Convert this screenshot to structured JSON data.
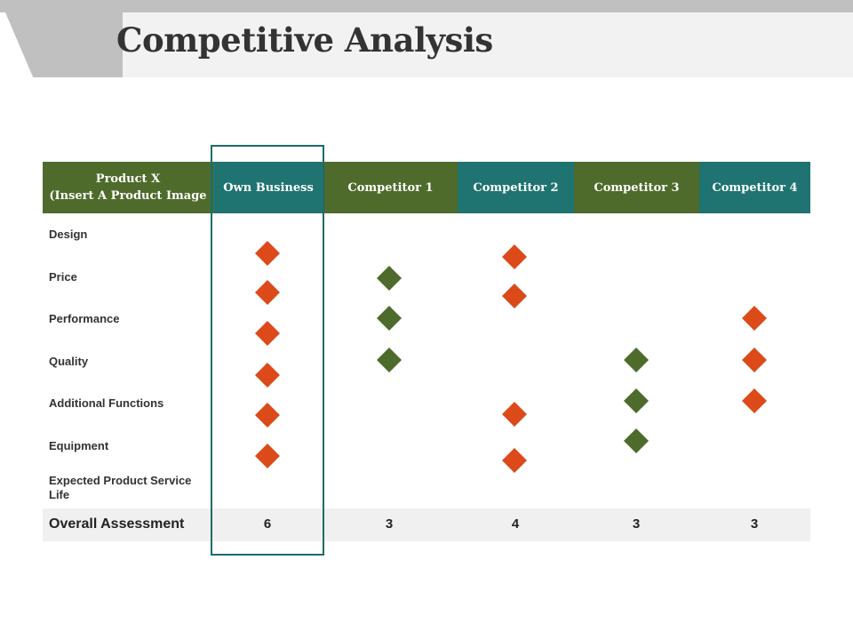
{
  "slide": {
    "title": "Competitive Analysis"
  },
  "table": {
    "product_header": "Product X\n(Insert A Product Image",
    "columns": [
      {
        "label": "Own Business",
        "color": "#1f7371"
      },
      {
        "label": "Competitor 1",
        "color": "#4e6b2b"
      },
      {
        "label": "Competitor 2",
        "color": "#1f7371"
      },
      {
        "label": "Competitor 3",
        "color": "#4e6b2b"
      },
      {
        "label": "Competitor 4",
        "color": "#1f7371"
      }
    ],
    "rows": [
      "Design",
      "Price",
      "Performance",
      "Quality",
      "Additional Functions",
      "Equipment",
      "Expected Product Service Life"
    ],
    "assessment": {
      "label": "Overall Assessment",
      "values": [
        "6",
        "3",
        "4",
        "3",
        "3"
      ]
    },
    "highlighted_column": "Own Business",
    "marker_colors": {
      "orange": "#dc4a1a",
      "green": "#4e6b2b"
    },
    "markers": [
      {
        "column": "Own Business",
        "color": "orange",
        "count": 6
      },
      {
        "column": "Competitor 1",
        "color": "green",
        "count": 3
      },
      {
        "column": "Competitor 2",
        "color": "orange",
        "count": 4
      },
      {
        "column": "Competitor 3",
        "color": "green",
        "count": 3
      },
      {
        "column": "Competitor 4",
        "color": "orange",
        "count": 3
      }
    ]
  }
}
